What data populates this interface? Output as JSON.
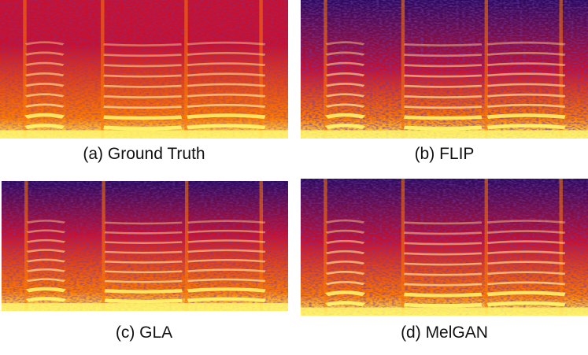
{
  "panels": [
    {
      "id": "a",
      "caption": "(a) Ground Truth",
      "image": "spectrogram"
    },
    {
      "id": "b",
      "caption": "(b) FLIP",
      "image": "spectrogram"
    },
    {
      "id": "c",
      "caption": "(c) GLA",
      "image": "spectrogram"
    },
    {
      "id": "d",
      "caption": "(d) MelGAN",
      "image": "spectrogram"
    }
  ],
  "colors": {
    "low": "#2a0a5e",
    "mid": "#c8102e",
    "high": "#ff7a00",
    "peak": "#fff36b"
  }
}
